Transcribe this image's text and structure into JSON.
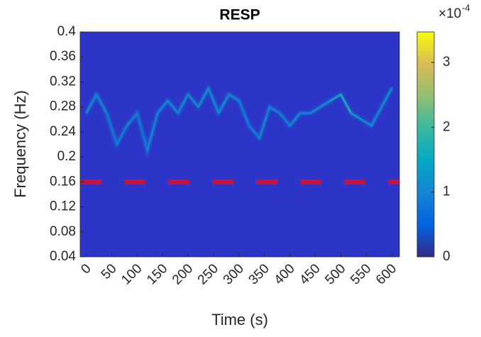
{
  "chart_data": {
    "type": "spectrogram",
    "title": "RESP",
    "x_label": "Time (s)",
    "y_label": "Frequency (Hz)",
    "xlim": [
      -12,
      615
    ],
    "xticks": [
      0,
      50,
      100,
      150,
      200,
      250,
      300,
      350,
      400,
      450,
      500,
      550,
      600
    ],
    "ylim": [
      0.04,
      0.4
    ],
    "yticks": [
      0.04,
      0.08,
      0.12,
      0.16,
      0.2,
      0.24,
      0.28,
      0.32,
      0.36,
      0.4
    ],
    "clim": [
      0,
      3.47
    ],
    "cticks": [
      0,
      1,
      2,
      3
    ],
    "colorbar_exponent": {
      "base": "×10",
      "power": "-4"
    },
    "colormap": [
      "#352a87",
      "#0363e1",
      "#1485d4",
      "#06a7c6",
      "#38b99e",
      "#92bf73",
      "#d9ba56",
      "#f9fb0e"
    ],
    "threshold": {
      "value": 0.16,
      "color": "#c8143c"
    },
    "series": [
      {
        "name": "ridge",
        "x": [
          0,
          20,
          40,
          60,
          80,
          100,
          120,
          140,
          160,
          180,
          200,
          220,
          240,
          260,
          280,
          300,
          320,
          340,
          360,
          380,
          400,
          420,
          440,
          460,
          480,
          500,
          520,
          540,
          560,
          580,
          600
        ],
        "values": [
          0.27,
          0.3,
          0.27,
          0.22,
          0.25,
          0.27,
          0.21,
          0.27,
          0.29,
          0.27,
          0.3,
          0.28,
          0.31,
          0.27,
          0.3,
          0.29,
          0.25,
          0.23,
          0.28,
          0.27,
          0.25,
          0.27,
          0.27,
          0.28,
          0.29,
          0.3,
          0.27,
          0.26,
          0.25,
          0.28,
          0.31
        ],
        "intensity": [
          1.0,
          1.1,
          1.0,
          0.8,
          0.9,
          1.0,
          0.8,
          1.0,
          1.0,
          1.0,
          1.1,
          1.0,
          1.2,
          1.0,
          1.1,
          1.0,
          0.9,
          0.9,
          1.0,
          1.0,
          0.9,
          1.0,
          1.0,
          1.1,
          1.2,
          1.6,
          1.8,
          1.3,
          1.1,
          1.0,
          1.2
        ]
      }
    ]
  }
}
